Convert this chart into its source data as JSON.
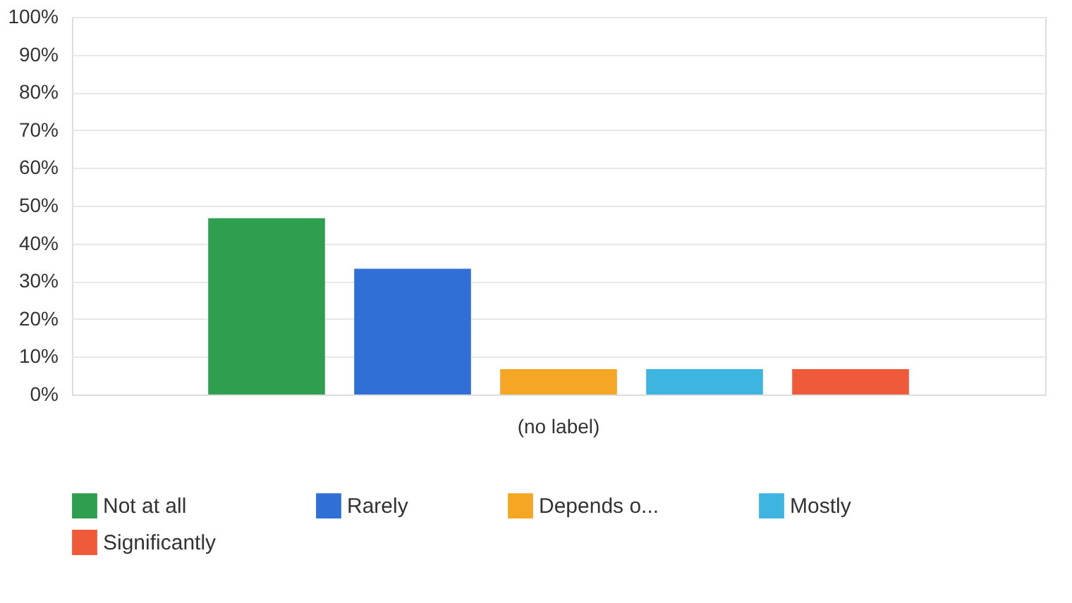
{
  "chart_data": {
    "type": "bar",
    "categories": [
      "(no label)"
    ],
    "series": [
      {
        "name": "Not at all",
        "color": "#2e9e4f",
        "values": [
          46.7
        ]
      },
      {
        "name": "Rarely",
        "color": "#2f6fd6",
        "values": [
          33.3
        ]
      },
      {
        "name": "Depends o...",
        "color": "#f5a623",
        "values": [
          6.7
        ]
      },
      {
        "name": "Mostly",
        "color": "#3db5e0",
        "values": [
          6.7
        ]
      },
      {
        "name": "Significantly",
        "color": "#ef5a3a",
        "values": [
          6.7
        ]
      }
    ],
    "ylim": [
      0,
      100
    ],
    "yticks": [
      {
        "value": 0,
        "label": "0%"
      },
      {
        "value": 10,
        "label": "10%"
      },
      {
        "value": 20,
        "label": "20%"
      },
      {
        "value": 30,
        "label": "30%"
      },
      {
        "value": 40,
        "label": "40%"
      },
      {
        "value": 50,
        "label": "50%"
      },
      {
        "value": 60,
        "label": "60%"
      },
      {
        "value": 70,
        "label": "70%"
      },
      {
        "value": 80,
        "label": "80%"
      },
      {
        "value": 90,
        "label": "90%"
      },
      {
        "value": 100,
        "label": "100%"
      }
    ],
    "grid": "y",
    "legend": "bottom"
  }
}
